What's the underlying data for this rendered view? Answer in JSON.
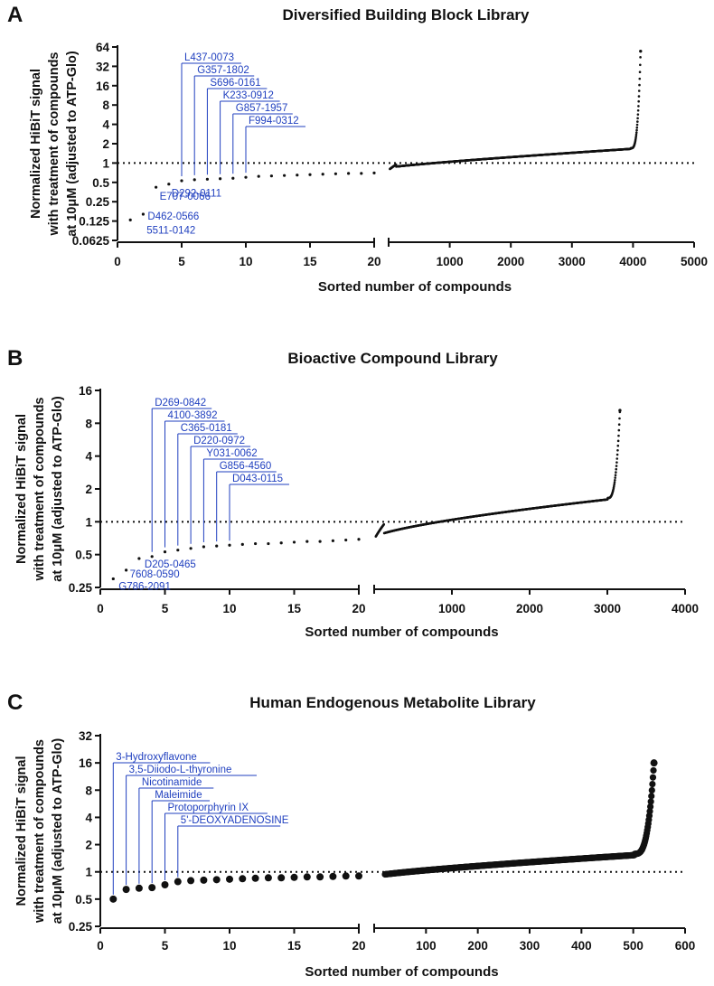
{
  "chart_data": [
    {
      "type": "scatter",
      "panel": "A",
      "title": "Diversified Building Block Library",
      "xlabel": "Sorted number of compounds",
      "ylabel_lines": [
        "Normalized HiBiT signal",
        "with treatment of compounds",
        "at 10μM (adjusted to ATP-Glo)"
      ],
      "y_scale": "log2",
      "y_ticks": [
        0.0625,
        0.125,
        0.25,
        0.5,
        1,
        2,
        4,
        8,
        16,
        32,
        64
      ],
      "y_tick_labels": [
        "0.0625",
        "0.125",
        "0.25",
        "0.5",
        "1",
        "2",
        "4",
        "8",
        "16",
        "32",
        "64"
      ],
      "x_ticks_left": [
        "0",
        "5",
        "10",
        "15",
        "20"
      ],
      "x_ticks_right": [
        "1000",
        "2000",
        "3000",
        "4000",
        "5000"
      ],
      "x_break": true,
      "reference_line_y": 1,
      "left_x": [
        1,
        2,
        3,
        4,
        5,
        6,
        7,
        8,
        9,
        10,
        11,
        12,
        13,
        14,
        15,
        16,
        17,
        18,
        19,
        20
      ],
      "left_y": [
        0.13,
        0.16,
        0.42,
        0.47,
        0.53,
        0.55,
        0.56,
        0.57,
        0.58,
        0.6,
        0.62,
        0.63,
        0.64,
        0.65,
        0.66,
        0.67,
        0.68,
        0.69,
        0.69,
        0.7
      ],
      "right_total": 4124,
      "right_y_max": 55,
      "annotations": [
        {
          "label": "L437-0073",
          "x": 5,
          "pos": "above"
        },
        {
          "label": "G357-1802",
          "x": 6,
          "pos": "above"
        },
        {
          "label": "S696-0161",
          "x": 7,
          "pos": "above"
        },
        {
          "label": "K233-0912",
          "x": 8,
          "pos": "above"
        },
        {
          "label": "G857-1957",
          "x": 9,
          "pos": "above"
        },
        {
          "label": "F994-0312",
          "x": 10,
          "pos": "above"
        },
        {
          "label": "D292-0111",
          "x": 4,
          "pos": "below"
        },
        {
          "label": "E707-0066",
          "x": 3,
          "pos": "below"
        },
        {
          "label": "D462-0566",
          "x": 2,
          "pos": "below"
        },
        {
          "label": "5511-0142",
          "x": 1,
          "pos": "below"
        }
      ]
    },
    {
      "type": "scatter",
      "panel": "B",
      "title": "Bioactive Compound Library",
      "xlabel": "Sorted number of compounds",
      "ylabel_lines": [
        "Normalized HiBiT signal",
        "with treatment of compounds",
        "at 10μM (adjusted to ATP-Glo)"
      ],
      "y_scale": "log2",
      "y_ticks": [
        0.25,
        0.5,
        1,
        2,
        4,
        8,
        16
      ],
      "y_tick_labels": [
        "0.25",
        "0.5",
        "1",
        "2",
        "4",
        "8",
        "16"
      ],
      "x_ticks_left": [
        "0",
        "5",
        "10",
        "15",
        "20"
      ],
      "x_ticks_right": [
        "1000",
        "2000",
        "3000",
        "4000"
      ],
      "x_break": true,
      "reference_line_y": 1,
      "left_x": [
        1,
        2,
        3,
        4,
        5,
        6,
        7,
        8,
        9,
        10,
        11,
        12,
        13,
        14,
        15,
        16,
        17,
        18,
        19,
        20
      ],
      "left_y": [
        0.3,
        0.36,
        0.46,
        0.48,
        0.53,
        0.55,
        0.57,
        0.59,
        0.6,
        0.61,
        0.62,
        0.63,
        0.63,
        0.64,
        0.65,
        0.66,
        0.66,
        0.67,
        0.68,
        0.69
      ],
      "right_total": 3162,
      "right_y_max": 10.5,
      "annotations": [
        {
          "label": "D269-0842",
          "x": 4,
          "pos": "above"
        },
        {
          "label": "4100-3892",
          "x": 5,
          "pos": "above"
        },
        {
          "label": "C365-0181",
          "x": 6,
          "pos": "above"
        },
        {
          "label": "D220-0972",
          "x": 7,
          "pos": "above"
        },
        {
          "label": "Y031-0062",
          "x": 8,
          "pos": "above"
        },
        {
          "label": "G856-4560",
          "x": 9,
          "pos": "above"
        },
        {
          "label": "D043-0115",
          "x": 10,
          "pos": "above"
        },
        {
          "label": "D205-0465",
          "x": 3,
          "pos": "below"
        },
        {
          "label": "7608-0590",
          "x": 2,
          "pos": "below"
        },
        {
          "label": "G786-2091",
          "x": 1,
          "pos": "below"
        }
      ]
    },
    {
      "type": "scatter",
      "panel": "C",
      "title": "Human Endogenous Metabolite Library",
      "xlabel": "Sorted number of compounds",
      "ylabel_lines": [
        "Normalized HiBiT signal",
        "with treatment of compounds",
        "at 10μM (adjusted to ATP-Glo)"
      ],
      "y_scale": "log2",
      "y_ticks": [
        0.25,
        0.5,
        1,
        2,
        4,
        8,
        16,
        32
      ],
      "y_tick_labels": [
        "0.25",
        "0.5",
        "1",
        "2",
        "4",
        "8",
        "16",
        "32"
      ],
      "x_ticks_left": [
        "0",
        "5",
        "10",
        "15",
        "20"
      ],
      "x_ticks_right": [
        "100",
        "200",
        "300",
        "400",
        "500",
        "600"
      ],
      "x_break": true,
      "reference_line_y": 1,
      "left_x": [
        1,
        2,
        3,
        4,
        5,
        6,
        7,
        8,
        9,
        10,
        11,
        12,
        13,
        14,
        15,
        16,
        17,
        18,
        19,
        20
      ],
      "left_y": [
        0.5,
        0.64,
        0.66,
        0.67,
        0.72,
        0.78,
        0.8,
        0.81,
        0.82,
        0.83,
        0.84,
        0.85,
        0.86,
        0.86,
        0.87,
        0.88,
        0.88,
        0.89,
        0.9,
        0.9
      ],
      "right_total": 540,
      "right_y_max": 16,
      "annotations": [
        {
          "label": "3-Hydroxyflavone",
          "x": 1,
          "pos": "above"
        },
        {
          "label": "3,5-Diiodo-L-thyronine",
          "x": 2,
          "pos": "above"
        },
        {
          "label": "Nicotinamide",
          "x": 3,
          "pos": "above"
        },
        {
          "label": "Maleimide",
          "x": 4,
          "pos": "above"
        },
        {
          "label": "Protoporphyrin IX",
          "x": 5,
          "pos": "above"
        },
        {
          "label": "5'-DEOXYADENOSINE",
          "x": 6,
          "pos": "above"
        }
      ]
    }
  ]
}
